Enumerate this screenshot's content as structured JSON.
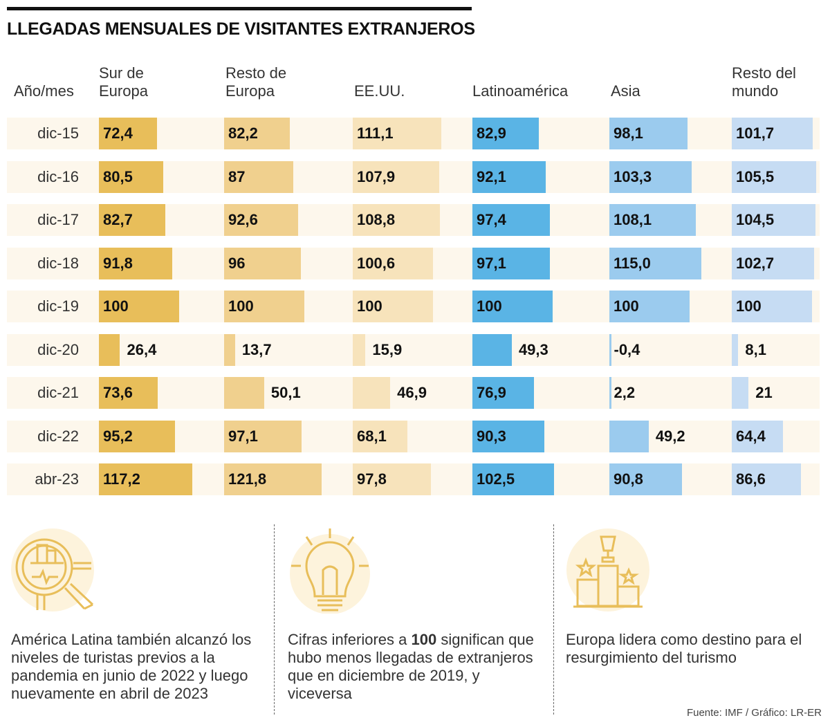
{
  "title": "LLEGADAS MENSUALES DE VISITANTES EXTRANJEROS",
  "chart_data": {
    "type": "table",
    "row_header": "Año/mes",
    "categories": [
      "dic-15",
      "dic-16",
      "dic-17",
      "dic-18",
      "dic-19",
      "dic-20",
      "dic-21",
      "dic-22",
      "abr-23"
    ],
    "series": [
      {
        "name": "Sur de\nEuropa",
        "color": "#e8be5a",
        "values": [
          72.4,
          80.5,
          82.7,
          91.8,
          100,
          26.4,
          73.6,
          95.2,
          117.2
        ],
        "labels": [
          "72,4",
          "80,5",
          "82,7",
          "91,8",
          "100",
          "26,4",
          "73,6",
          "95,2",
          "117,2"
        ]
      },
      {
        "name": "Resto de\nEuropa",
        "color": "#f0d08e",
        "values": [
          82.2,
          87,
          92.6,
          96,
          100,
          13.7,
          50.1,
          97.1,
          121.8
        ],
        "labels": [
          "82,2",
          "87",
          "92,6",
          "96",
          "100",
          "13,7",
          "50,1",
          "97,1",
          "121,8"
        ]
      },
      {
        "name": "EE.UU.",
        "color": "#f7e3bb",
        "values": [
          111.1,
          107.9,
          108.8,
          100.6,
          100,
          15.9,
          46.9,
          68.1,
          97.8
        ],
        "labels": [
          "111,1",
          "107,9",
          "108,8",
          "100,6",
          "100",
          "15,9",
          "46,9",
          "68,1",
          "97,8"
        ]
      },
      {
        "name": "Latinoamérica",
        "color": "#5ab4e5",
        "values": [
          82.9,
          92.1,
          97.4,
          97.1,
          100,
          49.3,
          76.9,
          90.3,
          102.5
        ],
        "labels": [
          "82,9",
          "92,1",
          "97,4",
          "97,1",
          "100",
          "49,3",
          "76,9",
          "90,3",
          "102,5"
        ]
      },
      {
        "name": "Asia",
        "color": "#9bcbee",
        "values": [
          98.1,
          103.3,
          108.1,
          115.0,
          100,
          -0.4,
          2.2,
          49.2,
          90.8
        ],
        "labels": [
          "98,1",
          "103,3",
          "108,1",
          "115,0",
          "100",
          "-0,4",
          "2,2",
          "49,2",
          "90,8"
        ]
      },
      {
        "name": "Resto del\nmundo",
        "color": "#c6dcf3",
        "values": [
          101.7,
          105.5,
          104.5,
          102.7,
          100,
          8.1,
          21,
          64.4,
          86.6
        ],
        "labels": [
          "101,7",
          "105,5",
          "104,5",
          "102,7",
          "100",
          "8,1",
          "21",
          "64,4",
          "86,6"
        ]
      }
    ]
  },
  "notes": [
    {
      "icon": "magnifier-chart-icon",
      "html": "América Latina también alcanzó los niveles de turistas previos a la pandemia en junio de 2022 y luego nuevamente en abril de 2023"
    },
    {
      "icon": "lightbulb-icon",
      "pre": "Cifras inferiores a ",
      "bold": "100",
      "post": " significan que hubo menos llegadas de extranjeros que en diciembre de 2019, y viceversa"
    },
    {
      "icon": "trophy-podium-icon",
      "html": "Europa lidera como destino para el resurgimiento del turismo"
    }
  ],
  "source": "Fuente: IMF / Gráfico: LR-ER",
  "colors": {
    "icon": "#e8be5a",
    "icon_bg": "#fdf3dc",
    "row_bg": "#fdf7ec"
  }
}
